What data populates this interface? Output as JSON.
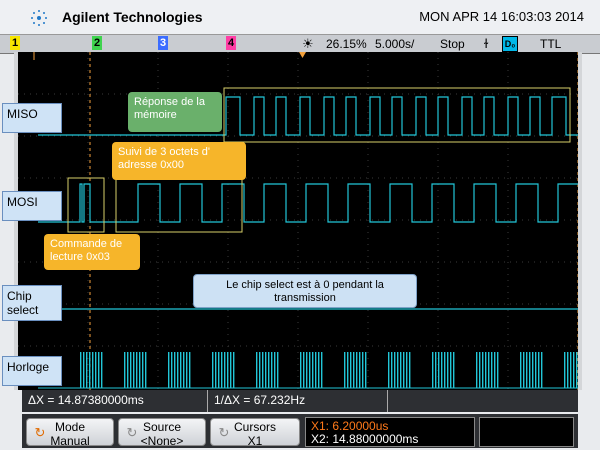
{
  "header": {
    "brand": "Agilent Technologies",
    "datetime": "MON APR 14 16:03:03 2014"
  },
  "status": {
    "channels": [
      "1",
      "2",
      "3",
      "4"
    ],
    "channel_colors": [
      "#f7e600",
      "#3fd34e",
      "#3b6cff",
      "#ff3ea5"
    ],
    "timebase_delay": "26.15%",
    "timebase": "5.000s/",
    "run_state": "Stop",
    "trigger_slope_icon": "falling-edge-icon",
    "trigger_source": "D₀",
    "trigger_level": "TTL"
  },
  "labels": {
    "miso": "MISO",
    "mosi": "MOSI",
    "cs": "Chip\nselect",
    "clk": "Horloge"
  },
  "annotations": {
    "reponse": "Réponse de la mémoire",
    "suivi": "Suivi de 3 octets d' adresse 0x00",
    "commande": "Commande de lecture 0x03",
    "chip_select": "Le chip select est à 0 pendant la transmission"
  },
  "readout": {
    "delta_x": "ΔX = 14.87380000ms",
    "inv_delta_x": "1/ΔX = 67.232Hz"
  },
  "softkeys": {
    "mode_label": "Mode",
    "mode_value": "Manual",
    "source_label": "Source",
    "source_value": "<None>",
    "cursors_label": "Cursors",
    "cursors_value": "X1",
    "x1": "X1: 6.20000us",
    "x2": "X2: 14.88000000ms"
  },
  "colors": {
    "trace": "#22c6d8",
    "cursor": "#f3a13b",
    "highlight": "#d8cf6a"
  }
}
